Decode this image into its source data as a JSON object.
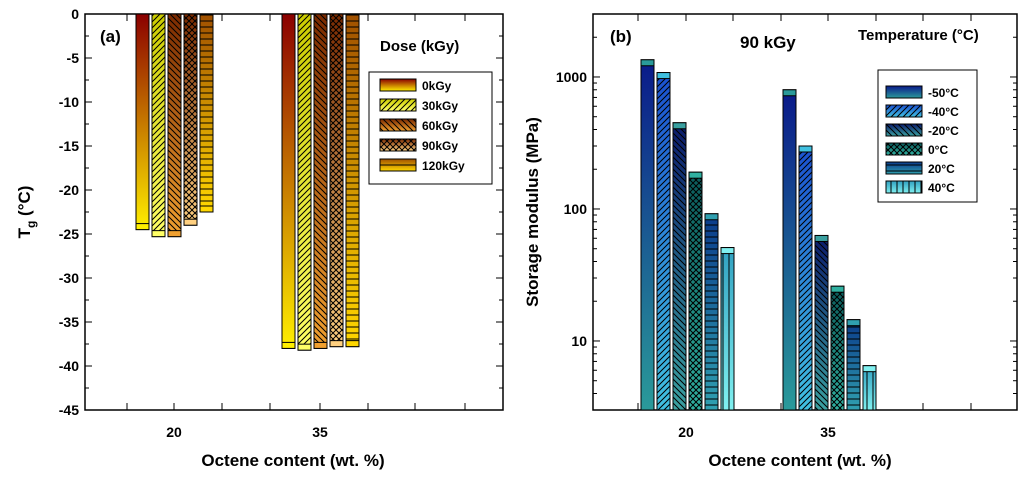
{
  "chart_data": [
    {
      "panel": "(a)",
      "type": "bar",
      "categories": [
        "20",
        "35"
      ],
      "xlabel": "Octene content (wt. %)",
      "ylabel_main": "T",
      "ylabel_sub": "g",
      "ylabel_unit": " (°C)",
      "ylim": [
        -45,
        0
      ],
      "yticks": [
        0,
        -5,
        -10,
        -15,
        -20,
        -25,
        -30,
        -35,
        -40,
        -45
      ],
      "legend_title": "Dose (kGy)",
      "series": [
        {
          "name": "0kGy",
          "values": [
            -24.5,
            -38.0
          ],
          "color_top": "#8b0000",
          "color_bottom": "#ffef00",
          "pattern": "solid"
        },
        {
          "name": "30kGy",
          "values": [
            -25.3,
            -38.2
          ],
          "color_top": "#cccc00",
          "color_bottom": "#ffff66",
          "pattern": "diag-right"
        },
        {
          "name": "60kGy",
          "values": [
            -25.3,
            -38.0
          ],
          "color_top": "#7a2a00",
          "color_bottom": "#f0a030",
          "pattern": "diag-left"
        },
        {
          "name": "90kGy",
          "values": [
            -24.0,
            -37.8
          ],
          "color_top": "#7a2a00",
          "color_bottom": "#ffd080",
          "pattern": "cross"
        },
        {
          "name": "120kGy",
          "values": [
            -22.5,
            -37.8
          ],
          "color_top": "#a05000",
          "color_bottom": "#ffd700",
          "pattern": "horizontal"
        }
      ]
    },
    {
      "panel": "(b)",
      "type": "bar",
      "scale": "log",
      "title": "90 kGy",
      "categories": [
        "20",
        "35"
      ],
      "xlabel": "Octene content (wt. %)",
      "ylabel": "Storage modulus (MPa)",
      "ylim": [
        3,
        3000
      ],
      "yticks": [
        10,
        100,
        1000
      ],
      "ytick_labels": [
        "10",
        "100",
        "1000"
      ],
      "legend_title": "Temperature (°C)",
      "series": [
        {
          "name": "-50°C",
          "values": [
            1350,
            800
          ],
          "color_top": "#0a1a8a",
          "color_bottom": "#2a9a9a",
          "pattern": "solid"
        },
        {
          "name": "-40°C",
          "values": [
            1080,
            300
          ],
          "color_top": "#1a50d0",
          "color_bottom": "#40c0e0",
          "pattern": "diag-right"
        },
        {
          "name": "-20°C",
          "values": [
            450,
            63
          ],
          "color_top": "#0a1a6a",
          "color_bottom": "#3aa0a0",
          "pattern": "diag-left"
        },
        {
          "name": "0°C",
          "values": [
            190,
            26
          ],
          "color_top": "#0a5a5a",
          "color_bottom": "#30b0a0",
          "pattern": "cross"
        },
        {
          "name": "20°C",
          "values": [
            92,
            14.5
          ],
          "color_top": "#0a3a8a",
          "color_bottom": "#30a0b0",
          "pattern": "horizontal"
        },
        {
          "name": "40°C",
          "values": [
            51,
            6.5
          ],
          "color_top": "#30a0c0",
          "color_bottom": "#80f0f0",
          "pattern": "vertical"
        }
      ]
    }
  ]
}
